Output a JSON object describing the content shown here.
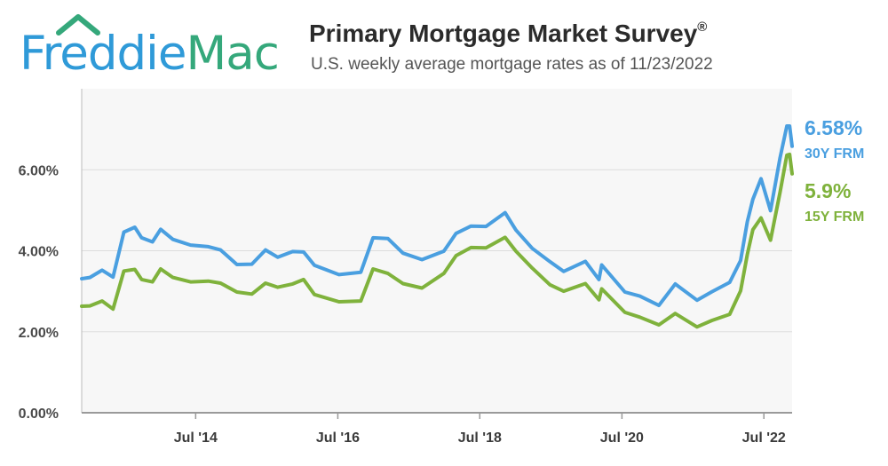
{
  "logo": {
    "word1": "Freddie",
    "word2": "Mac"
  },
  "header": {
    "title": "Primary Mortgage Market Survey",
    "title_mark": "®",
    "subtitle": "U.S. weekly average mortgage rates as of 11/23/2022"
  },
  "colors": {
    "frm30": "#4a9fe0",
    "frm15": "#7fb23c",
    "grid": "#dddddd",
    "plot_bg": "#f7f7f7"
  },
  "chart_data": {
    "type": "line",
    "title": "Primary Mortgage Market Survey",
    "subtitle": "U.S. weekly average mortgage rates as of 11/23/2022",
    "x_range": [
      "2012-11-22",
      "2022-11-23"
    ],
    "ylim": [
      0,
      8
    ],
    "y_ticks": [
      0,
      2,
      4,
      6
    ],
    "y_tick_labels": [
      "0.00%",
      "2.00%",
      "4.00%",
      "6.00%"
    ],
    "x_ticks": [
      "2014-07-01",
      "2016-07-01",
      "2018-07-01",
      "2020-07-01",
      "2022-07-01"
    ],
    "x_tick_labels": [
      "Jul '14",
      "Jul '16",
      "Jul '18",
      "Jul '20",
      "Jul '22"
    ],
    "grid": true,
    "legend_position": "right end labels",
    "series": [
      {
        "name": "30Y FRM",
        "end_label": "6.58%",
        "points": [
          [
            "2012-11-22",
            3.31
          ],
          [
            "2013-01-03",
            3.34
          ],
          [
            "2013-03-07",
            3.52
          ],
          [
            "2013-05-02",
            3.35
          ],
          [
            "2013-06-27",
            4.46
          ],
          [
            "2013-08-22",
            4.58
          ],
          [
            "2013-09-26",
            4.32
          ],
          [
            "2013-11-21",
            4.22
          ],
          [
            "2014-01-02",
            4.53
          ],
          [
            "2014-03-06",
            4.28
          ],
          [
            "2014-06-05",
            4.14
          ],
          [
            "2014-09-04",
            4.1
          ],
          [
            "2014-11-06",
            4.02
          ],
          [
            "2015-01-29",
            3.66
          ],
          [
            "2015-04-16",
            3.67
          ],
          [
            "2015-06-25",
            4.02
          ],
          [
            "2015-08-27",
            3.84
          ],
          [
            "2015-11-12",
            3.98
          ],
          [
            "2016-01-07",
            3.97
          ],
          [
            "2016-03-03",
            3.64
          ],
          [
            "2016-07-07",
            3.41
          ],
          [
            "2016-10-27",
            3.47
          ],
          [
            "2016-12-29",
            4.32
          ],
          [
            "2017-03-16",
            4.3
          ],
          [
            "2017-06-01",
            3.94
          ],
          [
            "2017-09-07",
            3.78
          ],
          [
            "2017-12-28",
            3.99
          ],
          [
            "2018-03-01",
            4.43
          ],
          [
            "2018-05-17",
            4.61
          ],
          [
            "2018-08-02",
            4.6
          ],
          [
            "2018-11-08",
            4.94
          ],
          [
            "2019-01-03",
            4.51
          ],
          [
            "2019-03-28",
            4.06
          ],
          [
            "2019-06-27",
            3.73
          ],
          [
            "2019-09-05",
            3.49
          ],
          [
            "2019-12-26",
            3.74
          ],
          [
            "2020-03-05",
            3.29
          ],
          [
            "2020-03-19",
            3.65
          ],
          [
            "2020-07-16",
            2.98
          ],
          [
            "2020-10-01",
            2.88
          ],
          [
            "2021-01-07",
            2.65
          ],
          [
            "2021-04-01",
            3.18
          ],
          [
            "2021-07-22",
            2.78
          ],
          [
            "2021-10-07",
            2.99
          ],
          [
            "2022-01-06",
            3.22
          ],
          [
            "2022-03-03",
            3.76
          ],
          [
            "2022-04-07",
            4.72
          ],
          [
            "2022-05-05",
            5.27
          ],
          [
            "2022-06-16",
            5.78
          ],
          [
            "2022-08-04",
            4.99
          ],
          [
            "2022-09-22",
            6.29
          ],
          [
            "2022-10-27",
            7.08
          ],
          [
            "2022-11-10",
            7.08
          ],
          [
            "2022-11-23",
            6.58
          ]
        ]
      },
      {
        "name": "15Y FRM",
        "end_label": "5.9%",
        "points": [
          [
            "2012-11-22",
            2.63
          ],
          [
            "2013-01-03",
            2.64
          ],
          [
            "2013-03-07",
            2.76
          ],
          [
            "2013-05-02",
            2.56
          ],
          [
            "2013-06-27",
            3.5
          ],
          [
            "2013-08-22",
            3.54
          ],
          [
            "2013-09-26",
            3.29
          ],
          [
            "2013-11-21",
            3.23
          ],
          [
            "2014-01-02",
            3.55
          ],
          [
            "2014-03-06",
            3.34
          ],
          [
            "2014-06-05",
            3.23
          ],
          [
            "2014-09-04",
            3.25
          ],
          [
            "2014-11-06",
            3.2
          ],
          [
            "2015-01-29",
            2.98
          ],
          [
            "2015-04-16",
            2.93
          ],
          [
            "2015-06-25",
            3.2
          ],
          [
            "2015-08-27",
            3.1
          ],
          [
            "2015-11-12",
            3.18
          ],
          [
            "2016-01-07",
            3.29
          ],
          [
            "2016-03-03",
            2.92
          ],
          [
            "2016-07-07",
            2.74
          ],
          [
            "2016-10-27",
            2.76
          ],
          [
            "2016-12-29",
            3.55
          ],
          [
            "2017-03-16",
            3.44
          ],
          [
            "2017-06-01",
            3.19
          ],
          [
            "2017-09-07",
            3.08
          ],
          [
            "2017-12-28",
            3.44
          ],
          [
            "2018-03-01",
            3.88
          ],
          [
            "2018-05-17",
            4.08
          ],
          [
            "2018-08-02",
            4.07
          ],
          [
            "2018-11-08",
            4.33
          ],
          [
            "2019-01-03",
            3.99
          ],
          [
            "2019-03-28",
            3.57
          ],
          [
            "2019-06-27",
            3.16
          ],
          [
            "2019-09-05",
            3.0
          ],
          [
            "2019-12-26",
            3.19
          ],
          [
            "2020-03-05",
            2.79
          ],
          [
            "2020-03-19",
            3.06
          ],
          [
            "2020-07-16",
            2.48
          ],
          [
            "2020-10-01",
            2.36
          ],
          [
            "2021-01-07",
            2.17
          ],
          [
            "2021-04-01",
            2.45
          ],
          [
            "2021-07-22",
            2.12
          ],
          [
            "2021-10-07",
            2.28
          ],
          [
            "2022-01-06",
            2.43
          ],
          [
            "2022-03-03",
            3.01
          ],
          [
            "2022-04-07",
            3.91
          ],
          [
            "2022-05-05",
            4.52
          ],
          [
            "2022-06-16",
            4.81
          ],
          [
            "2022-08-04",
            4.26
          ],
          [
            "2022-09-22",
            5.44
          ],
          [
            "2022-10-27",
            6.36
          ],
          [
            "2022-11-10",
            6.38
          ],
          [
            "2022-11-23",
            5.9
          ]
        ]
      }
    ]
  }
}
